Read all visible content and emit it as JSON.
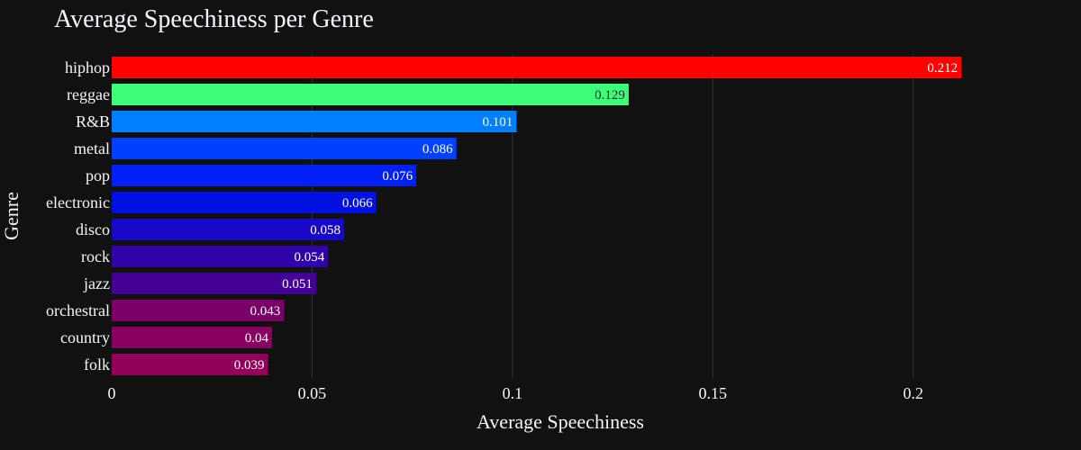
{
  "chart_data": {
    "type": "bar",
    "orientation": "horizontal",
    "title": "Average Speechiness per Genre",
    "xlabel": "Average Speechiness",
    "ylabel": "Genre",
    "xlim": [
      0,
      0.2385
    ],
    "xticks": [
      0,
      0.05,
      0.1,
      0.15,
      0.2
    ],
    "xtick_labels": [
      "0",
      "0.05",
      "0.1",
      "0.15",
      "0.2"
    ],
    "grid": true,
    "categories": [
      "hiphop",
      "reggae",
      "R&B",
      "metal",
      "pop",
      "electronic",
      "disco",
      "rock",
      "jazz",
      "orchestral",
      "country",
      "folk"
    ],
    "values": [
      0.212,
      0.129,
      0.101,
      0.086,
      0.076,
      0.066,
      0.058,
      0.054,
      0.051,
      0.043,
      0.04,
      0.039
    ],
    "value_labels": [
      "0.212",
      "0.129",
      "0.101",
      "0.086",
      "0.076",
      "0.066",
      "0.058",
      "0.054",
      "0.051",
      "0.043",
      "0.04",
      "0.039"
    ],
    "colors": [
      "#ff0000",
      "#3dff7a",
      "#0080ff",
      "#0040ff",
      "#0020f5",
      "#0010e0",
      "#1808c8",
      "#3003a8",
      "#440094",
      "#7a0068",
      "#880060",
      "#92005a"
    ],
    "label_colors": [
      "#ffffff",
      "#2a2a2a",
      "#ffffff",
      "#ffffff",
      "#ffffff",
      "#ffffff",
      "#ffffff",
      "#ffffff",
      "#ffffff",
      "#ffffff",
      "#ffffff",
      "#ffffff"
    ],
    "background": "#111111",
    "grid_color": "#283442"
  }
}
